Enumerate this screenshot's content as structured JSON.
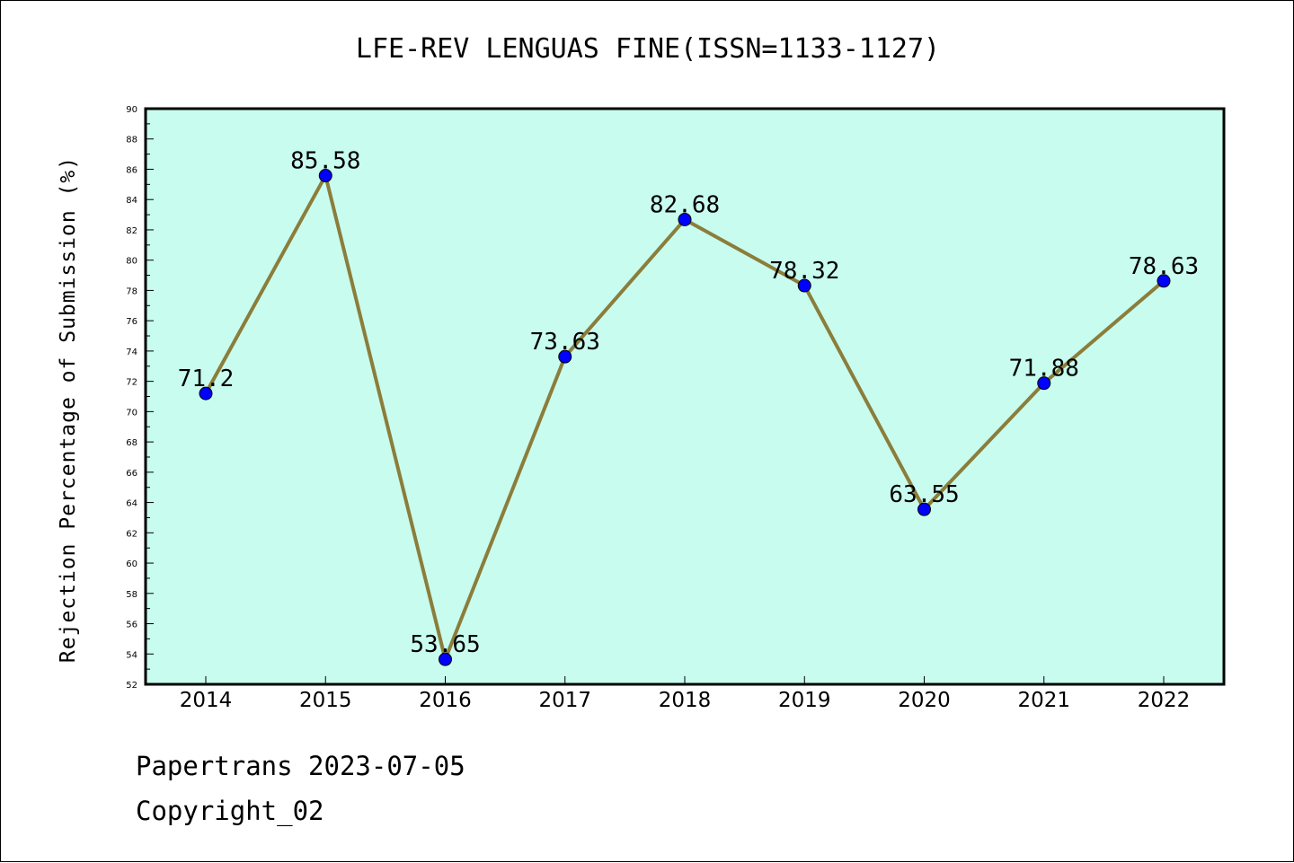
{
  "chart_data": {
    "type": "line",
    "title": "LFE-REV LENGUAS FINE(ISSN=1133-1127)",
    "ylabel": "Rejection Percentage of Submission (%)",
    "xlabel": "",
    "categories": [
      "2014",
      "2015",
      "2016",
      "2017",
      "2018",
      "2019",
      "2020",
      "2021",
      "2022"
    ],
    "series": [
      {
        "values": [
          71.2,
          85.58,
          53.65,
          73.63,
          82.68,
          78.32,
          63.55,
          71.88,
          78.63
        ]
      }
    ],
    "data_labels": [
      "71.2",
      "85.58",
      "53.65",
      "73.63",
      "82.68",
      "78.32",
      "63.55",
      "71.88",
      "78.63"
    ],
    "ylim": [
      52,
      90
    ],
    "yticks": [
      "52",
      "54",
      "56",
      "58",
      "60",
      "62",
      "64",
      "66",
      "68",
      "70",
      "72",
      "74",
      "76",
      "78",
      "80",
      "82",
      "84",
      "86",
      "88",
      "90"
    ],
    "grid": false,
    "colors": {
      "plot_background": "#c8fcef",
      "line": "#8b7d3a",
      "marker": "#0000ff"
    }
  },
  "footer": {
    "line1": "Papertrans 2023-07-05",
    "line2": "Copyright_02"
  }
}
